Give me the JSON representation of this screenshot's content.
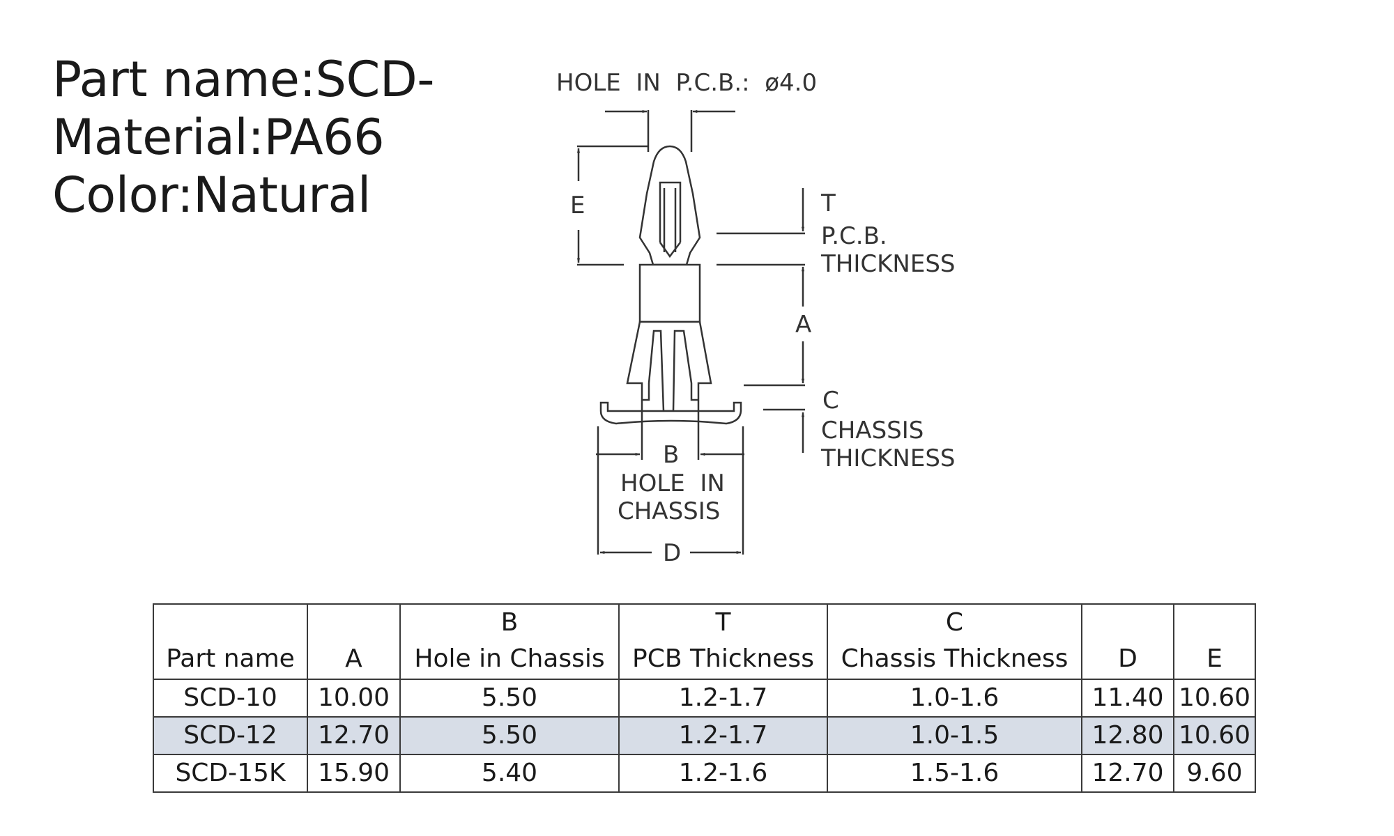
{
  "spec": {
    "part_name": "Part name:SCD-",
    "material": "Material:PA66",
    "color": "Color:Natural"
  },
  "drawing": {
    "hole_pcb": "HOLE  IN  P.C.B.:  ø4.0",
    "e": "E",
    "t": "T",
    "pcb_line1": "P.C.B.",
    "pcb_line2": "THICKNESS",
    "a": "A",
    "c": "C",
    "chassis_line1": "CHASSIS",
    "chassis_line2": "THICKNESS",
    "b": "B",
    "hole_chassis_line1": "HOLE  IN",
    "hole_chassis_line2": "CHASSIS",
    "d": "D"
  },
  "table": {
    "headers": [
      {
        "top": "",
        "bottom": "Part name"
      },
      {
        "top": "",
        "bottom": "A"
      },
      {
        "top": "B",
        "bottom": "Hole in Chassis"
      },
      {
        "top": "T",
        "bottom": "PCB Thickness"
      },
      {
        "top": "C",
        "bottom": "Chassis Thickness"
      },
      {
        "top": "",
        "bottom": "D"
      },
      {
        "top": "",
        "bottom": "E"
      }
    ],
    "rows": [
      [
        "SCD-10",
        "10.00",
        "5.50",
        "1.2-1.7",
        "1.0-1.6",
        "11.40",
        "10.60"
      ],
      [
        "SCD-12",
        "12.70",
        "5.50",
        "1.2-1.7",
        "1.0-1.5",
        "12.80",
        "10.60"
      ],
      [
        "SCD-15K",
        "15.90",
        "5.40",
        "1.2-1.6",
        "1.5-1.6",
        "12.70",
        "9.60"
      ]
    ],
    "highlight_color": "#d7dde7"
  }
}
